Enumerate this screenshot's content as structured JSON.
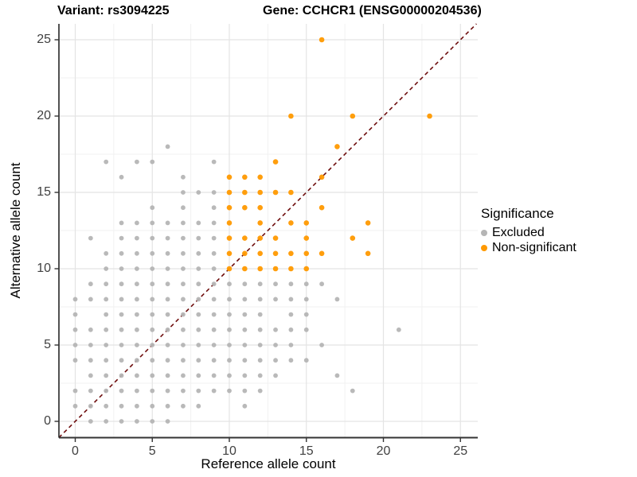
{
  "header": {
    "title_left": "Variant: rs3094225",
    "title_right": "Gene: CCHCR1 (ENSG00000204536)"
  },
  "chart_data": {
    "type": "scatter",
    "xlabel": "Reference allele count",
    "ylabel": "Alternative allele count",
    "xlim": [
      -1.1,
      26.2
    ],
    "ylim": [
      -1.1,
      26.1
    ],
    "x_ticks": [
      0,
      5,
      10,
      15,
      20,
      25
    ],
    "y_ticks": [
      0,
      5,
      10,
      15,
      20,
      25
    ],
    "minor_gridlines": [
      2.5,
      7.5,
      12.5,
      17.5,
      22.5
    ],
    "grid": true,
    "reference_line": {
      "type": "identity",
      "equation": "y = x",
      "style": "dashed",
      "color": "#6E0D0D"
    },
    "legend": {
      "title": "Significance",
      "position": "right"
    },
    "colors": {
      "excluded": "#B5B5B5",
      "non_significant": "#FF9900",
      "major_grid": "#E4E4E4",
      "minor_grid": "#F1F1F1",
      "axis_line": "#333333"
    },
    "series": [
      {
        "name": "Excluded",
        "color": "#B5B5B5",
        "points": [
          [
            1,
            0
          ],
          [
            2,
            0
          ],
          [
            3,
            0
          ],
          [
            4,
            0
          ],
          [
            5,
            0
          ],
          [
            6,
            0
          ],
          [
            0,
            1
          ],
          [
            1,
            1
          ],
          [
            2,
            1
          ],
          [
            3,
            1
          ],
          [
            4,
            1
          ],
          [
            5,
            1
          ],
          [
            6,
            1
          ],
          [
            7,
            1
          ],
          [
            8,
            1
          ],
          [
            11,
            1
          ],
          [
            0,
            2
          ],
          [
            1,
            2
          ],
          [
            2,
            2
          ],
          [
            3,
            2
          ],
          [
            4,
            2
          ],
          [
            5,
            2
          ],
          [
            6,
            2
          ],
          [
            7,
            2
          ],
          [
            8,
            2
          ],
          [
            9,
            2
          ],
          [
            10,
            2
          ],
          [
            11,
            2
          ],
          [
            12,
            2
          ],
          [
            18,
            2
          ],
          [
            1,
            3
          ],
          [
            2,
            3
          ],
          [
            3,
            3
          ],
          [
            4,
            3
          ],
          [
            5,
            3
          ],
          [
            6,
            3
          ],
          [
            7,
            3
          ],
          [
            8,
            3
          ],
          [
            9,
            3
          ],
          [
            10,
            3
          ],
          [
            11,
            3
          ],
          [
            12,
            3
          ],
          [
            13,
            3
          ],
          [
            17,
            3
          ],
          [
            0,
            4
          ],
          [
            1,
            4
          ],
          [
            2,
            4
          ],
          [
            3,
            4
          ],
          [
            4,
            4
          ],
          [
            5,
            4
          ],
          [
            6,
            4
          ],
          [
            7,
            4
          ],
          [
            8,
            4
          ],
          [
            9,
            4
          ],
          [
            10,
            4
          ],
          [
            11,
            4
          ],
          [
            12,
            4
          ],
          [
            13,
            4
          ],
          [
            14,
            4
          ],
          [
            15,
            4
          ],
          [
            0,
            5
          ],
          [
            1,
            5
          ],
          [
            2,
            5
          ],
          [
            3,
            5
          ],
          [
            4,
            5
          ],
          [
            5,
            5
          ],
          [
            6,
            5
          ],
          [
            7,
            5
          ],
          [
            8,
            5
          ],
          [
            9,
            5
          ],
          [
            10,
            5
          ],
          [
            11,
            5
          ],
          [
            12,
            5
          ],
          [
            13,
            5
          ],
          [
            14,
            5
          ],
          [
            16,
            5
          ],
          [
            0,
            6
          ],
          [
            1,
            6
          ],
          [
            2,
            6
          ],
          [
            3,
            6
          ],
          [
            4,
            6
          ],
          [
            5,
            6
          ],
          [
            6,
            6
          ],
          [
            7,
            6
          ],
          [
            8,
            6
          ],
          [
            9,
            6
          ],
          [
            10,
            6
          ],
          [
            11,
            6
          ],
          [
            12,
            6
          ],
          [
            13,
            6
          ],
          [
            14,
            6
          ],
          [
            15,
            6
          ],
          [
            21,
            6
          ],
          [
            0,
            7
          ],
          [
            2,
            7
          ],
          [
            3,
            7
          ],
          [
            4,
            7
          ],
          [
            5,
            7
          ],
          [
            6,
            7
          ],
          [
            7,
            7
          ],
          [
            8,
            7
          ],
          [
            9,
            7
          ],
          [
            10,
            7
          ],
          [
            11,
            7
          ],
          [
            12,
            7
          ],
          [
            14,
            7
          ],
          [
            15,
            7
          ],
          [
            0,
            8
          ],
          [
            1,
            8
          ],
          [
            2,
            8
          ],
          [
            3,
            8
          ],
          [
            4,
            8
          ],
          [
            5,
            8
          ],
          [
            6,
            8
          ],
          [
            7,
            8
          ],
          [
            8,
            8
          ],
          [
            9,
            8
          ],
          [
            10,
            8
          ],
          [
            11,
            8
          ],
          [
            12,
            8
          ],
          [
            13,
            8
          ],
          [
            14,
            8
          ],
          [
            15,
            8
          ],
          [
            17,
            8
          ],
          [
            1,
            9
          ],
          [
            2,
            9
          ],
          [
            3,
            9
          ],
          [
            4,
            9
          ],
          [
            5,
            9
          ],
          [
            6,
            9
          ],
          [
            7,
            9
          ],
          [
            8,
            9
          ],
          [
            9,
            9
          ],
          [
            10,
            9
          ],
          [
            11,
            9
          ],
          [
            12,
            9
          ],
          [
            13,
            9
          ],
          [
            14,
            9
          ],
          [
            15,
            9
          ],
          [
            16,
            9
          ],
          [
            2,
            10
          ],
          [
            3,
            10
          ],
          [
            4,
            10
          ],
          [
            5,
            10
          ],
          [
            6,
            10
          ],
          [
            7,
            10
          ],
          [
            8,
            10
          ],
          [
            9,
            10
          ],
          [
            2,
            11
          ],
          [
            3,
            11
          ],
          [
            4,
            11
          ],
          [
            5,
            11
          ],
          [
            6,
            11
          ],
          [
            7,
            11
          ],
          [
            8,
            11
          ],
          [
            9,
            11
          ],
          [
            1,
            12
          ],
          [
            3,
            12
          ],
          [
            4,
            12
          ],
          [
            5,
            12
          ],
          [
            6,
            12
          ],
          [
            7,
            12
          ],
          [
            8,
            12
          ],
          [
            9,
            12
          ],
          [
            3,
            13
          ],
          [
            4,
            13
          ],
          [
            5,
            13
          ],
          [
            6,
            13
          ],
          [
            7,
            13
          ],
          [
            8,
            13
          ],
          [
            9,
            13
          ],
          [
            5,
            14
          ],
          [
            7,
            14
          ],
          [
            9,
            14
          ],
          [
            7,
            15
          ],
          [
            8,
            15
          ],
          [
            9,
            15
          ],
          [
            3,
            16
          ],
          [
            7,
            16
          ],
          [
            2,
            17
          ],
          [
            4,
            17
          ],
          [
            5,
            17
          ],
          [
            9,
            17
          ],
          [
            6,
            18
          ]
        ]
      },
      {
        "name": "Non-significant",
        "color": "#FF9900",
        "points": [
          [
            10,
            10
          ],
          [
            11,
            10
          ],
          [
            12,
            10
          ],
          [
            13,
            10
          ],
          [
            14,
            10
          ],
          [
            15,
            10
          ],
          [
            10,
            11
          ],
          [
            11,
            11
          ],
          [
            12,
            11
          ],
          [
            13,
            11
          ],
          [
            14,
            11
          ],
          [
            15,
            11
          ],
          [
            16,
            11
          ],
          [
            19,
            11
          ],
          [
            10,
            12
          ],
          [
            11,
            12
          ],
          [
            12,
            12
          ],
          [
            13,
            12
          ],
          [
            15,
            12
          ],
          [
            18,
            12
          ],
          [
            10,
            13
          ],
          [
            12,
            13
          ],
          [
            14,
            13
          ],
          [
            15,
            13
          ],
          [
            19,
            13
          ],
          [
            10,
            14
          ],
          [
            11,
            14
          ],
          [
            12,
            14
          ],
          [
            16,
            14
          ],
          [
            10,
            15
          ],
          [
            11,
            15
          ],
          [
            12,
            15
          ],
          [
            13,
            15
          ],
          [
            14,
            15
          ],
          [
            10,
            16
          ],
          [
            11,
            16
          ],
          [
            12,
            16
          ],
          [
            16,
            16
          ],
          [
            13,
            17
          ],
          [
            17,
            18
          ],
          [
            14,
            20
          ],
          [
            18,
            20
          ],
          [
            23,
            20
          ],
          [
            16,
            25
          ]
        ]
      }
    ]
  }
}
